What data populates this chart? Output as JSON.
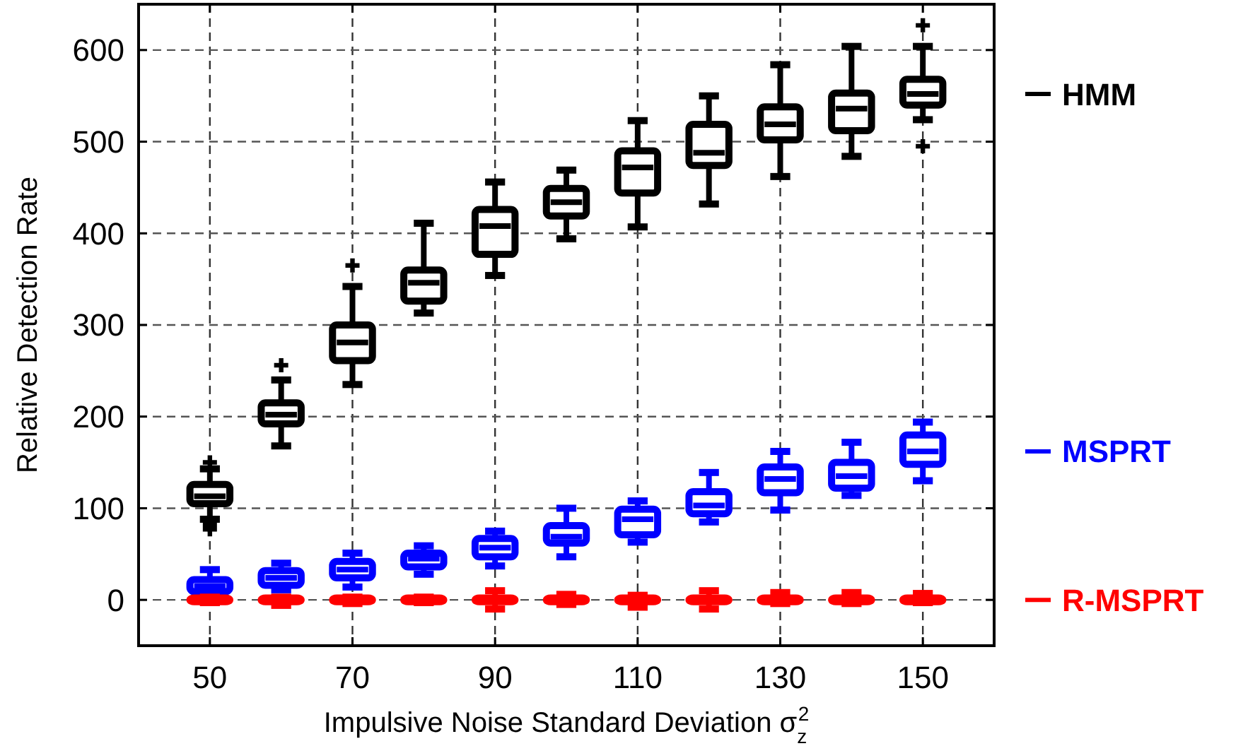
{
  "chart_data": {
    "type": "box",
    "xlabel": "Impulsive Noise Standard Deviation σ$_{z}$$^{2}$",
    "ylabel": "Relative Detection Rate",
    "x": [
      50,
      60,
      70,
      80,
      90,
      100,
      110,
      120,
      130,
      140,
      150
    ],
    "xlim": [
      40,
      160
    ],
    "xticks": [
      50,
      70,
      90,
      110,
      130,
      150
    ],
    "ylim": [
      -50,
      650
    ],
    "yticks": [
      0,
      100,
      200,
      300,
      400,
      500,
      600
    ],
    "grid": true,
    "legend": "right",
    "marker": "cross",
    "series": [
      {
        "name": "HMM",
        "color": "#000000",
        "boxes": [
          {
            "low": 88,
            "q1": 105,
            "median": 113,
            "q3": 126,
            "high": 143,
            "outliers": [
              150,
              82,
              77
            ]
          },
          {
            "low": 168,
            "q1": 192,
            "median": 202,
            "q3": 215,
            "high": 240,
            "outliers": [
              256
            ]
          },
          {
            "low": 235,
            "q1": 261,
            "median": 281,
            "q3": 300,
            "high": 342,
            "outliers": [
              365
            ]
          },
          {
            "low": 313,
            "q1": 326,
            "median": 346,
            "q3": 360,
            "high": 411
          },
          {
            "low": 354,
            "q1": 377,
            "median": 408,
            "q3": 426,
            "high": 456
          },
          {
            "low": 394,
            "q1": 419,
            "median": 434,
            "q3": 449,
            "high": 469
          },
          {
            "low": 407,
            "q1": 444,
            "median": 472,
            "q3": 490,
            "high": 523
          },
          {
            "low": 432,
            "q1": 474,
            "median": 488,
            "q3": 519,
            "high": 550
          },
          {
            "low": 462,
            "q1": 502,
            "median": 519,
            "q3": 538,
            "high": 584
          },
          {
            "low": 484,
            "q1": 512,
            "median": 536,
            "q3": 553,
            "high": 604
          },
          {
            "low": 524,
            "q1": 540,
            "median": 552,
            "q3": 568,
            "high": 604,
            "outliers": [
              627,
              495
            ]
          }
        ]
      },
      {
        "name": "MSPRT",
        "color": "#0000ff",
        "boxes": [
          {
            "low": 5,
            "q1": 9,
            "median": 15,
            "q3": 22,
            "high": 33
          },
          {
            "low": 11,
            "q1": 16,
            "median": 24,
            "q3": 32,
            "high": 40
          },
          {
            "low": 14,
            "q1": 24,
            "median": 33,
            "q3": 42,
            "high": 51
          },
          {
            "low": 28,
            "q1": 36,
            "median": 45,
            "q3": 51,
            "high": 59
          },
          {
            "low": 37,
            "q1": 47,
            "median": 57,
            "q3": 67,
            "high": 75
          },
          {
            "low": 47,
            "q1": 62,
            "median": 69,
            "q3": 81,
            "high": 100
          },
          {
            "low": 63,
            "q1": 71,
            "median": 88,
            "q3": 99,
            "high": 108
          },
          {
            "low": 85,
            "q1": 94,
            "median": 103,
            "q3": 118,
            "high": 139
          },
          {
            "low": 98,
            "q1": 117,
            "median": 132,
            "q3": 145,
            "high": 162
          },
          {
            "low": 114,
            "q1": 122,
            "median": 135,
            "q3": 150,
            "high": 172
          },
          {
            "low": 130,
            "q1": 148,
            "median": 162,
            "q3": 180,
            "high": 194
          }
        ]
      },
      {
        "name": "R-MSPRT",
        "color": "#ff0000",
        "boxes": [
          {
            "low": -3,
            "q1": -2,
            "median": 0,
            "q3": 2,
            "high": 3
          },
          {
            "low": -6,
            "q1": -2,
            "median": 0,
            "q3": 2,
            "high": 3
          },
          {
            "low": -4,
            "q1": -2,
            "median": 0,
            "q3": 2,
            "high": 3
          },
          {
            "low": -3,
            "q1": -2,
            "median": 0,
            "q3": 2,
            "high": 3
          },
          {
            "low": -10,
            "q1": -2,
            "median": 0,
            "q3": 2,
            "high": 10
          },
          {
            "low": -5,
            "q1": -2,
            "median": 0,
            "q3": 2,
            "high": 6
          },
          {
            "low": -8,
            "q1": -2,
            "median": 0,
            "q3": 2,
            "high": 5
          },
          {
            "low": -10,
            "q1": -2,
            "median": 0,
            "q3": 2,
            "high": 10
          },
          {
            "low": -4,
            "q1": -2,
            "median": 0,
            "q3": 2,
            "high": 8
          },
          {
            "low": -4,
            "q1": -2,
            "median": 0,
            "q3": 2,
            "high": 8
          },
          {
            "low": -3,
            "q1": -2,
            "median": 0,
            "q3": 2,
            "high": 7
          }
        ]
      }
    ]
  }
}
